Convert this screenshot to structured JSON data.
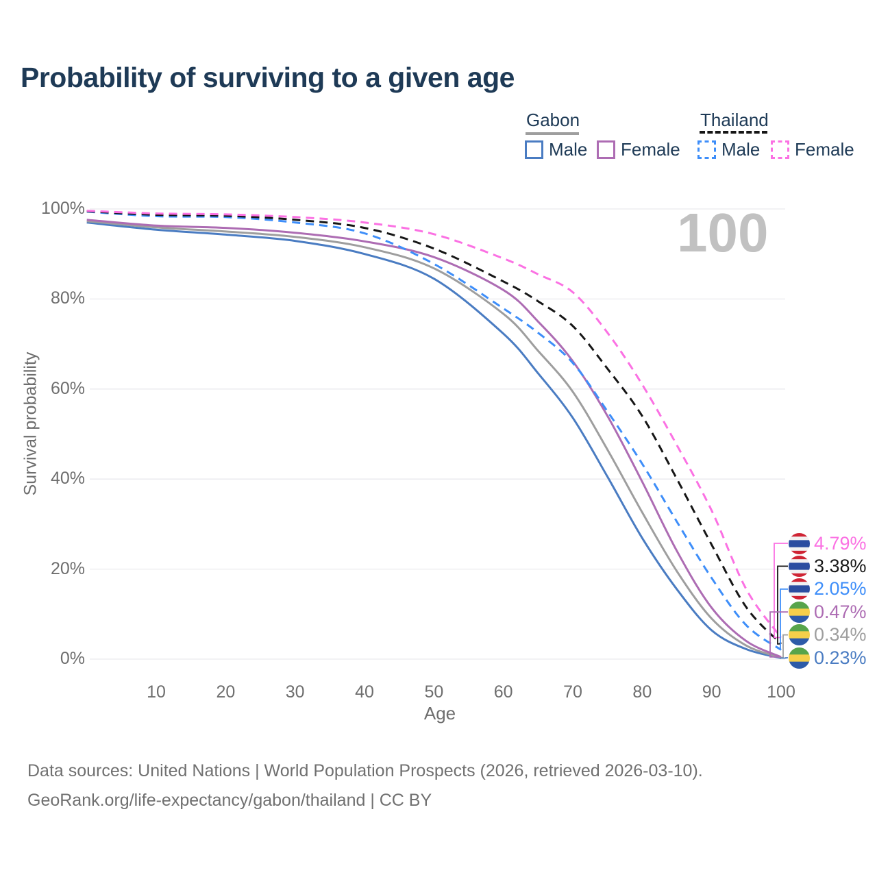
{
  "title": "Probability of surviving to a given age",
  "watermark": "100",
  "colors": {
    "title_text": "#1e3a56",
    "axis_text": "#6e6e6e",
    "gridline": "#eaeaee",
    "watermark": "#c1c1c1"
  },
  "legend": {
    "groups": [
      {
        "label": "Gabon",
        "line_style": "solid",
        "underline_color": "#9e9e9e",
        "items": [
          {
            "label": "Male",
            "color": "#4a7cc2",
            "dashed": false
          },
          {
            "label": "Female",
            "color": "#ad6cb3",
            "dashed": false
          }
        ]
      },
      {
        "label": "Thailand",
        "line_style": "dashed",
        "underline_color": "#161616",
        "items": [
          {
            "label": "Male",
            "color": "#3e8ef9",
            "dashed": true
          },
          {
            "label": "Female",
            "color": "#fb71e3",
            "dashed": true
          }
        ]
      }
    ]
  },
  "flags": {
    "thailand": {
      "stripe_colors": [
        "#cf2434",
        "#f2f2f2",
        "#2b4da0",
        "#f2f2f2",
        "#cf2434"
      ],
      "stripe_fractions": [
        0.1667,
        0.1667,
        0.3333,
        0.1667,
        0.1667
      ]
    },
    "gabon": {
      "stripe_colors": [
        "#57a44b",
        "#f5cf4a",
        "#2d5ba8"
      ],
      "stripe_fractions": [
        0.3333,
        0.3334,
        0.3333
      ]
    }
  },
  "chart_data": {
    "type": "line",
    "title": "Probability of surviving to a given age",
    "xlabel": "Age",
    "ylabel": "Survival probability",
    "xlim": [
      0,
      100
    ],
    "ylim": [
      0,
      100
    ],
    "grid": "horizontal",
    "legend_position": "top-right",
    "x_ticks": [
      10,
      20,
      30,
      40,
      50,
      60,
      70,
      80,
      90,
      100
    ],
    "y_ticks": [
      0,
      20,
      40,
      60,
      80,
      100
    ],
    "y_tick_labels": [
      "0%",
      "20%",
      "40%",
      "60%",
      "80%",
      "100%"
    ],
    "x": [
      0,
      10,
      20,
      30,
      40,
      50,
      60,
      65,
      70,
      75,
      80,
      85,
      90,
      95,
      100
    ],
    "series": [
      {
        "name": "Thailand Female",
        "country": "thailand",
        "sex": "Female",
        "color": "#fb71e3",
        "dashed": true,
        "end_label": "4.79%",
        "values": [
          99.6,
          99.0,
          98.8,
          98.2,
          97.0,
          94.4,
          89.0,
          85.5,
          81.5,
          72.5,
          61.0,
          47.5,
          33.0,
          15.5,
          4.79
        ]
      },
      {
        "name": "Thailand Both sexes",
        "country": "thailand",
        "sex": "Both",
        "color": "#161616",
        "dashed": true,
        "end_label": "3.38%",
        "values": [
          99.5,
          98.7,
          98.5,
          97.6,
          95.8,
          91.2,
          83.9,
          79.5,
          74.0,
          64.5,
          54.0,
          40.0,
          25.4,
          11.5,
          3.38
        ]
      },
      {
        "name": "Thailand Male",
        "country": "thailand",
        "sex": "Male",
        "color": "#3e8ef9",
        "dashed": true,
        "end_label": "2.05%",
        "values": [
          99.4,
          98.4,
          98.2,
          97.0,
          94.6,
          87.8,
          77.9,
          72.5,
          65.8,
          55.0,
          43.4,
          30.5,
          18.0,
          7.5,
          2.05
        ]
      },
      {
        "name": "Gabon Female",
        "country": "gabon",
        "sex": "Female",
        "color": "#ad6cb3",
        "dashed": false,
        "end_label": "0.47%",
        "values": [
          97.6,
          96.3,
          95.8,
          94.7,
          92.8,
          89.3,
          82.0,
          75.0,
          66.2,
          54.0,
          39.4,
          24.0,
          11.4,
          4.0,
          0.47
        ]
      },
      {
        "name": "Gabon Both sexes",
        "country": "gabon",
        "sex": "Both",
        "color": "#9e9e9e",
        "dashed": false,
        "end_label": "0.34%",
        "values": [
          97.3,
          95.9,
          95.0,
          93.8,
          91.5,
          86.8,
          76.7,
          68.5,
          59.4,
          46.5,
          32.6,
          19.5,
          9.0,
          3.0,
          0.34
        ]
      },
      {
        "name": "Gabon Male",
        "country": "gabon",
        "sex": "Male",
        "color": "#4a7cc2",
        "dashed": false,
        "end_label": "0.23%",
        "values": [
          97.0,
          95.4,
          94.3,
          92.9,
          90.0,
          84.5,
          72.3,
          63.5,
          53.6,
          40.5,
          26.9,
          15.5,
          6.4,
          2.2,
          0.23
        ]
      }
    ]
  },
  "footer": {
    "line1": "Data sources: United Nations | World Population Prospects (2026, retrieved 2026-03-10).",
    "line2": "GeoRank.org/life-expectancy/gabon/thailand | CC BY"
  }
}
